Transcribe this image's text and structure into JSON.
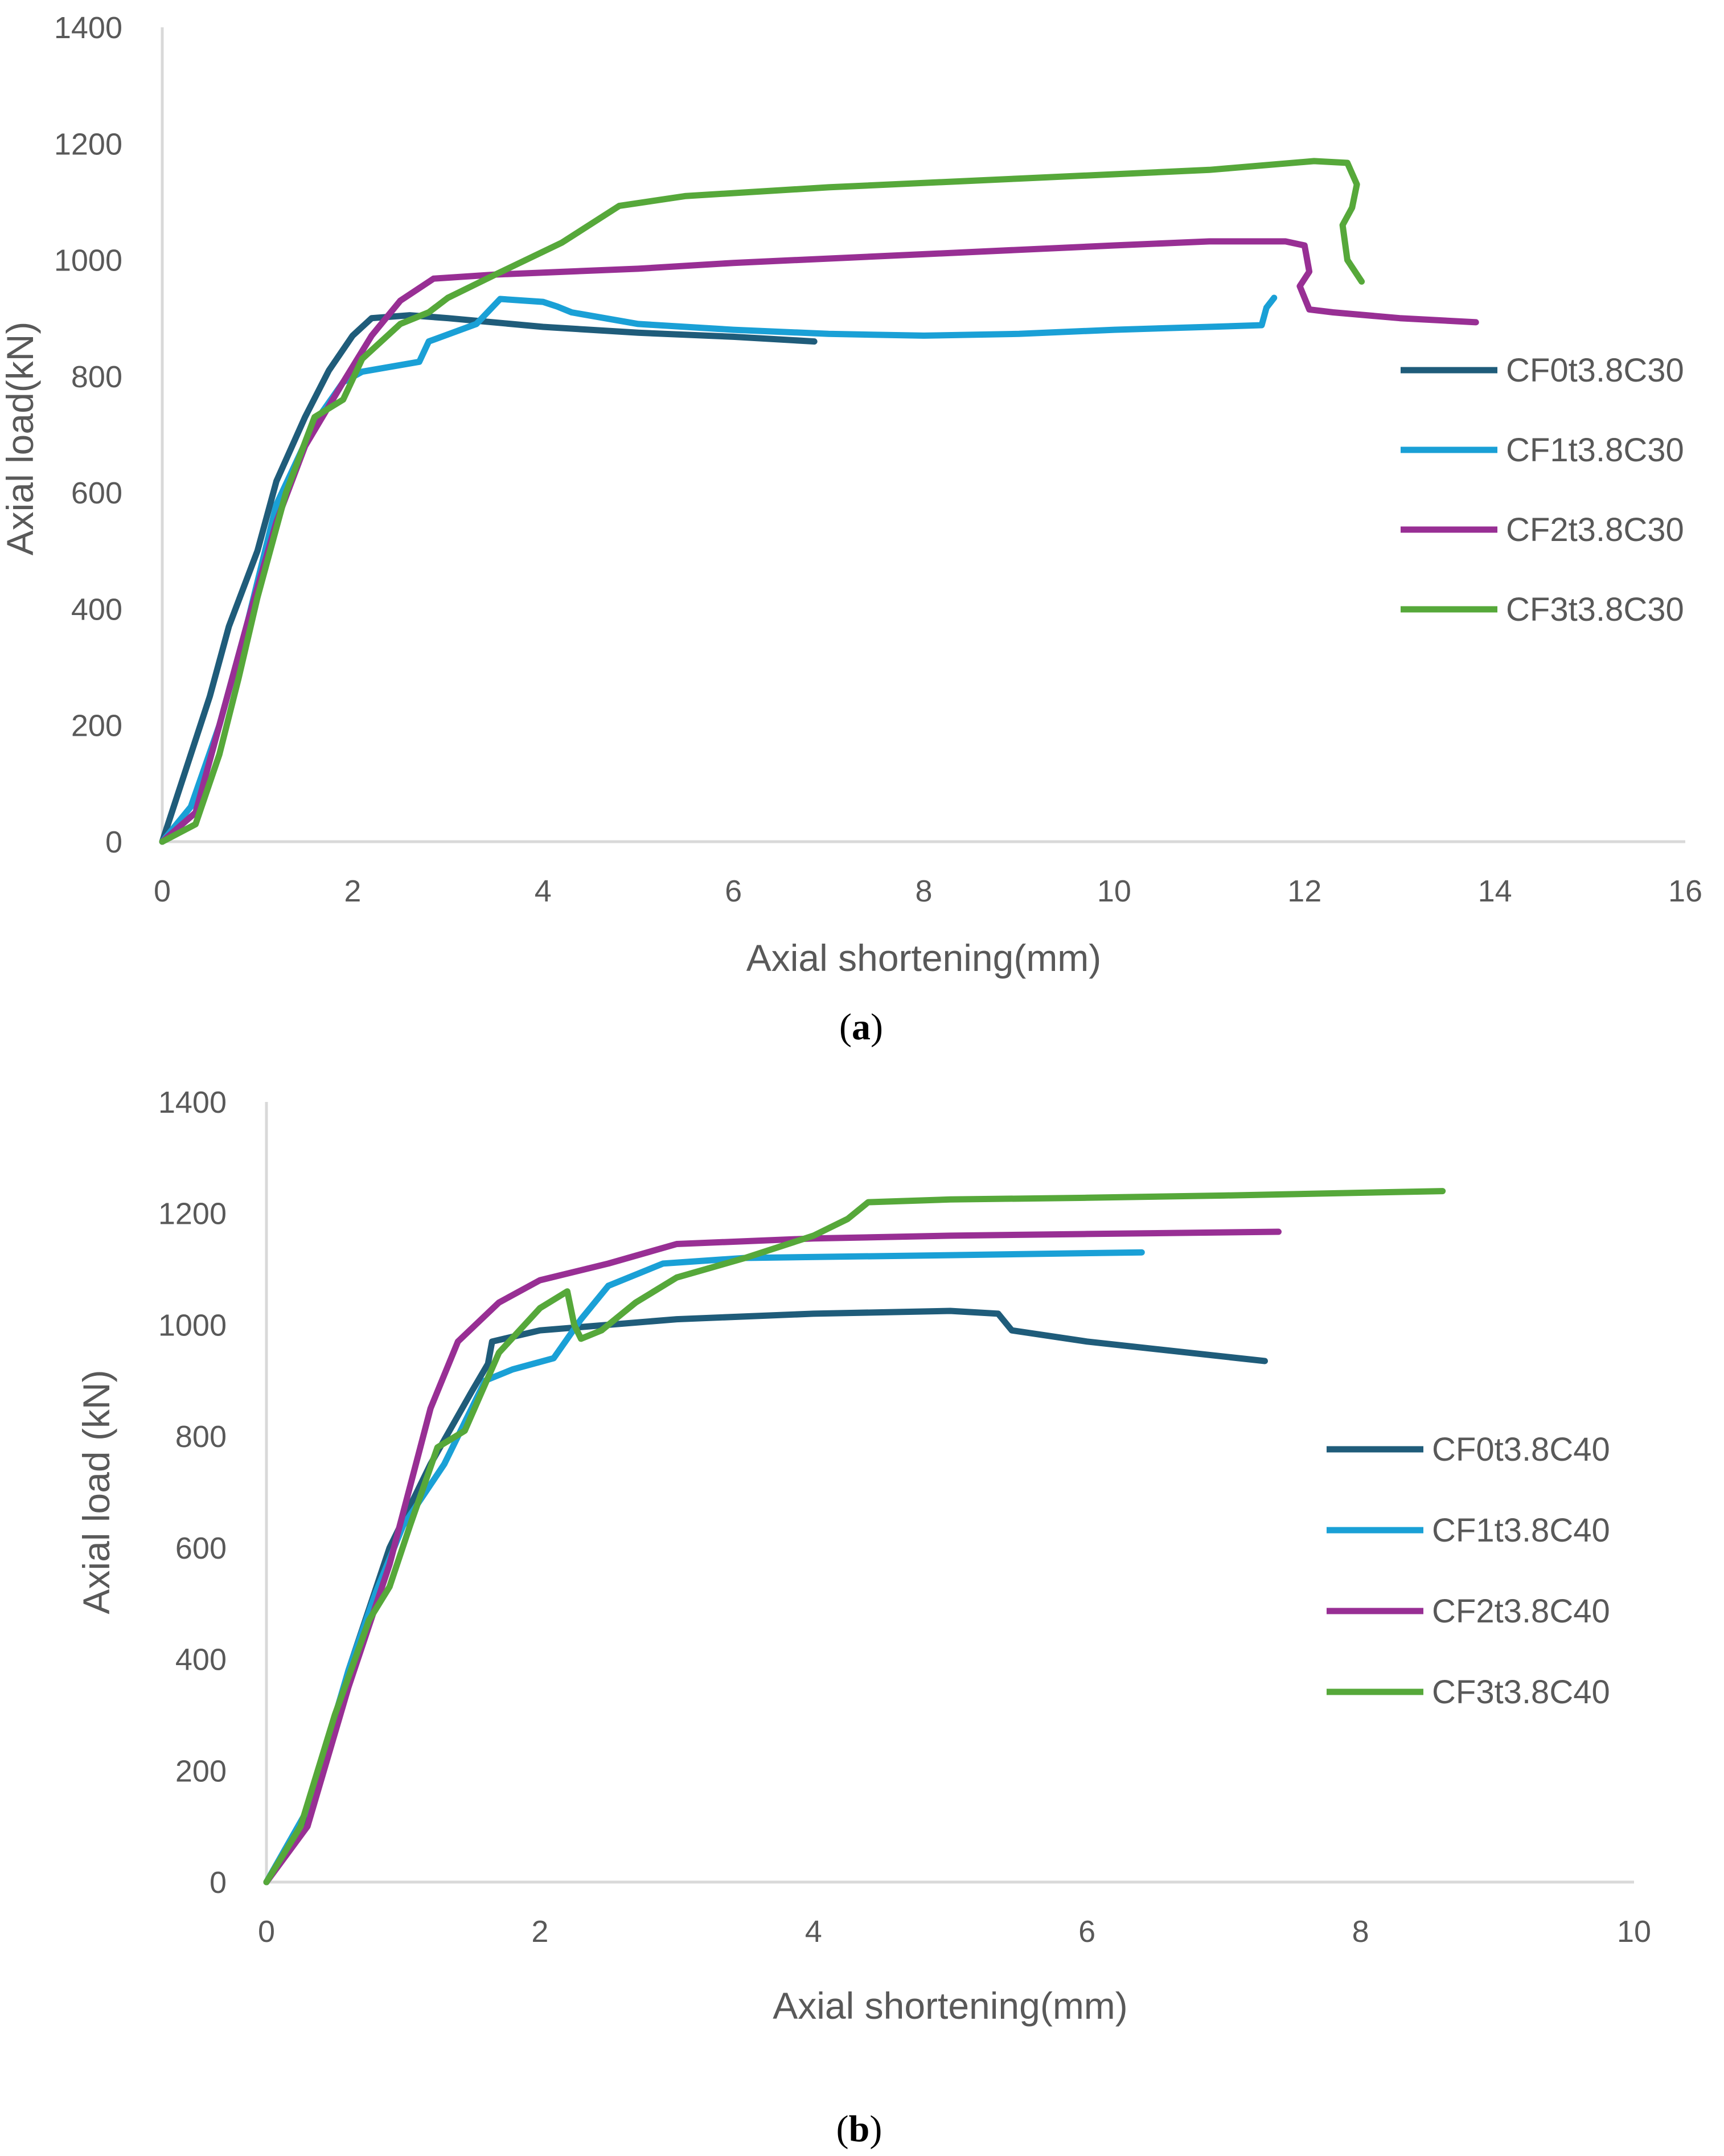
{
  "chart_data": [
    {
      "type": "line",
      "caption": "a",
      "xlabel": "Axial shortening(mm)",
      "ylabel": "Axial load(kN)",
      "xlim": [
        0,
        16
      ],
      "ylim": [
        0,
        1400
      ],
      "xticks": [
        0,
        2,
        4,
        6,
        8,
        10,
        12,
        14,
        16
      ],
      "yticks": [
        0,
        200,
        400,
        600,
        800,
        1000,
        1200,
        1400
      ],
      "grid": false,
      "legend_position": "right",
      "series": [
        {
          "name": "CF0t3.8C30",
          "color": "#1f5c7a",
          "x": [
            0,
            0.2,
            0.5,
            0.7,
            1.0,
            1.2,
            1.5,
            1.75,
            2.0,
            2.2,
            2.6,
            3.0,
            4.0,
            5.0,
            6.0,
            6.85
          ],
          "y": [
            0,
            100,
            250,
            370,
            500,
            620,
            730,
            810,
            870,
            900,
            905,
            900,
            885,
            875,
            868,
            860
          ]
        },
        {
          "name": "CF1t3.8C30",
          "color": "#1aa0d6",
          "x": [
            0,
            0.3,
            0.6,
            0.9,
            1.2,
            1.6,
            1.9,
            2.1,
            2.7,
            2.8,
            3.3,
            3.55,
            4.0,
            4.15,
            4.3,
            5.0,
            6.0,
            7.0,
            8.0,
            9.0,
            10.0,
            11.0,
            11.55,
            11.6,
            11.68
          ],
          "y": [
            0,
            60,
            200,
            380,
            580,
            720,
            790,
            808,
            825,
            860,
            890,
            933,
            928,
            920,
            910,
            890,
            880,
            873,
            870,
            873,
            880,
            885,
            888,
            918,
            935
          ]
        },
        {
          "name": "CF2t3.8C30",
          "color": "#982f94",
          "x": [
            0,
            0.35,
            0.6,
            0.9,
            1.2,
            1.5,
            1.9,
            2.2,
            2.5,
            2.85,
            3.5,
            5.0,
            6.0,
            8.0,
            10.0,
            11.0,
            11.8,
            12.0,
            12.05,
            11.95,
            12.05,
            12.3,
            13.0,
            13.8
          ],
          "y": [
            0,
            50,
            200,
            380,
            550,
            680,
            790,
            870,
            930,
            968,
            975,
            985,
            995,
            1010,
            1025,
            1032,
            1032,
            1025,
            980,
            955,
            915,
            910,
            900,
            893
          ]
        },
        {
          "name": "CF3t3.8C30",
          "color": "#56a83a",
          "x": [
            0,
            0.35,
            0.6,
            0.8,
            1.0,
            1.3,
            1.6,
            1.9,
            2.1,
            2.5,
            2.8,
            3.0,
            3.5,
            4.2,
            4.8,
            5.5,
            7.0,
            9.0,
            11.0,
            12.1,
            12.45,
            12.55,
            12.5,
            12.4,
            12.45,
            12.6
          ],
          "y": [
            0,
            30,
            150,
            280,
            420,
            600,
            730,
            760,
            830,
            890,
            910,
            935,
            975,
            1030,
            1093,
            1110,
            1125,
            1140,
            1155,
            1170,
            1167,
            1130,
            1090,
            1060,
            1000,
            963
          ]
        }
      ]
    },
    {
      "type": "line",
      "caption": "b",
      "xlabel": "Axial shortening(mm)",
      "ylabel": "Axial load (kN)",
      "xlim": [
        0,
        10
      ],
      "ylim": [
        0,
        1400
      ],
      "xticks": [
        0,
        2,
        4,
        6,
        8,
        10
      ],
      "yticks": [
        0,
        200,
        400,
        600,
        800,
        1000,
        1200,
        1400
      ],
      "grid": false,
      "legend_position": "right",
      "series": [
        {
          "name": "CF0t3.8C40",
          "color": "#1f5c7a",
          "x": [
            0,
            0.3,
            0.6,
            0.9,
            1.2,
            1.5,
            1.62,
            1.65,
            2.0,
            3.0,
            4.0,
            5.0,
            5.35,
            5.45,
            6.0,
            7.3
          ],
          "y": [
            0,
            120,
            380,
            600,
            750,
            880,
            930,
            970,
            990,
            1010,
            1020,
            1025,
            1020,
            990,
            970,
            935
          ]
        },
        {
          "name": "CF1t3.8C40",
          "color": "#1aa0d6",
          "x": [
            0,
            0.3,
            0.6,
            0.8,
            1.0,
            1.3,
            1.6,
            1.8,
            2.1,
            2.3,
            2.5,
            2.9,
            3.5,
            5.0,
            6.4
          ],
          "y": [
            0,
            130,
            380,
            520,
            640,
            750,
            900,
            920,
            940,
            1010,
            1070,
            1110,
            1120,
            1125,
            1130
          ]
        },
        {
          "name": "CF2t3.8C40",
          "color": "#982f94",
          "x": [
            0,
            0.3,
            0.6,
            0.9,
            1.2,
            1.4,
            1.7,
            2.0,
            2.5,
            3.0,
            4.0,
            5.0,
            6.0,
            7.4
          ],
          "y": [
            0,
            100,
            350,
            570,
            850,
            970,
            1040,
            1080,
            1110,
            1145,
            1155,
            1160,
            1163,
            1167
          ]
        },
        {
          "name": "CF3t3.8C40",
          "color": "#56a83a",
          "x": [
            0,
            0.25,
            0.5,
            0.75,
            0.9,
            1.05,
            1.25,
            1.45,
            1.7,
            2.0,
            2.2,
            2.25,
            2.3,
            2.45,
            2.7,
            3.0,
            3.5,
            4.0,
            4.25,
            4.4,
            5.0,
            6.0,
            7.0,
            8.6
          ],
          "y": [
            0,
            100,
            300,
            470,
            530,
            640,
            780,
            810,
            950,
            1030,
            1060,
            1000,
            975,
            990,
            1040,
            1085,
            1120,
            1160,
            1190,
            1220,
            1225,
            1228,
            1232,
            1240
          ]
        }
      ]
    }
  ]
}
